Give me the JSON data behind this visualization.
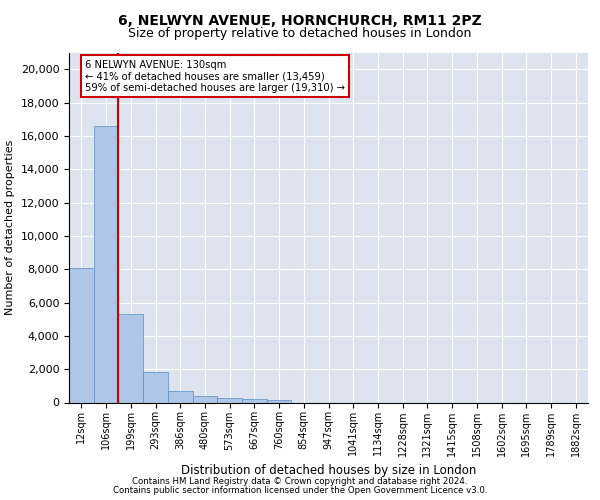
{
  "title1": "6, NELWYN AVENUE, HORNCHURCH, RM11 2PZ",
  "title2": "Size of property relative to detached houses in London",
  "xlabel": "Distribution of detached houses by size in London",
  "ylabel": "Number of detached properties",
  "bin_labels": [
    "12sqm",
    "106sqm",
    "199sqm",
    "293sqm",
    "386sqm",
    "480sqm",
    "573sqm",
    "667sqm",
    "760sqm",
    "854sqm",
    "947sqm",
    "1041sqm",
    "1134sqm",
    "1228sqm",
    "1321sqm",
    "1415sqm",
    "1508sqm",
    "1602sqm",
    "1695sqm",
    "1789sqm",
    "1882sqm"
  ],
  "bar_values": [
    8100,
    16600,
    5300,
    1850,
    700,
    370,
    290,
    210,
    160,
    0,
    0,
    0,
    0,
    0,
    0,
    0,
    0,
    0,
    0,
    0,
    0
  ],
  "bar_color": "#aec6e8",
  "bar_edge_color": "#5a8fc2",
  "background_color": "#dde4ef",
  "grid_color": "#ffffff",
  "property_line_color": "#cc0000",
  "annotation_line1": "6 NELWYN AVENUE: 130sqm",
  "annotation_line2": "← 41% of detached houses are smaller (13,459)",
  "annotation_line3": "59% of semi-detached houses are larger (19,310) →",
  "annotation_box_color": "#ffffff",
  "annotation_border_color": "#cc0000",
  "ylim": [
    0,
    21000
  ],
  "yticks": [
    0,
    2000,
    4000,
    6000,
    8000,
    10000,
    12000,
    14000,
    16000,
    18000,
    20000
  ],
  "footer1": "Contains HM Land Registry data © Crown copyright and database right 2024.",
  "footer2": "Contains public sector information licensed under the Open Government Licence v3.0."
}
